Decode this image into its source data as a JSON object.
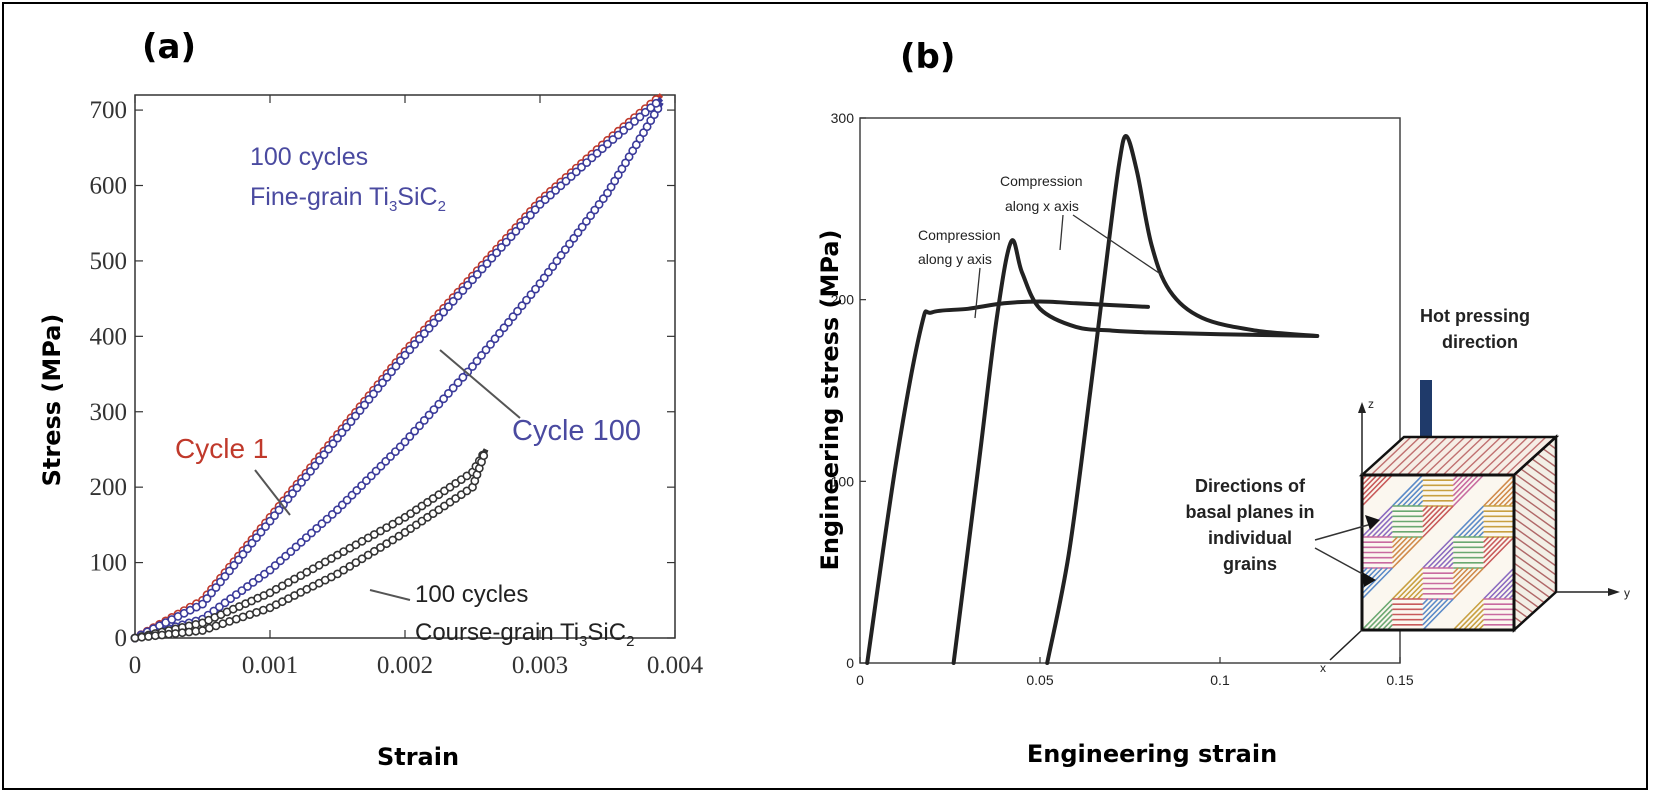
{
  "chart_data": [
    {
      "panel_label": "(a)",
      "type": "line",
      "xlabel": "Strain",
      "ylabel": "Stress (MPa)",
      "xlim": [
        0,
        0.004
      ],
      "ylim": [
        0,
        720
      ],
      "x_ticks": [
        "0",
        "0.001",
        "0.002",
        "0.003",
        "0.004"
      ],
      "y_ticks": [
        "0",
        "100",
        "200",
        "300",
        "400",
        "500",
        "600",
        "700"
      ],
      "annotations": {
        "fine_grain_line1": "100 cycles",
        "fine_grain_line2_prefix": "Fine-grain Ti",
        "fine_grain_sub1": "3",
        "fine_grain_mid": "SiC",
        "fine_grain_sub2": "2",
        "cycle1": "Cycle 1",
        "cycle100": "Cycle 100",
        "coarse_line1": "100 cycles",
        "coarse_line2_prefix": "Course-grain Ti",
        "coarse_sub1": "3",
        "coarse_mid": "SiC",
        "coarse_sub2": "2"
      },
      "series": [
        {
          "name": "Cycle 1",
          "color": "#c0392b",
          "x": [
            0,
            0.0005,
            0.001,
            0.0015,
            0.002,
            0.0025,
            0.003,
            0.0035,
            0.0039
          ],
          "y": [
            0,
            50,
            160,
            270,
            380,
            480,
            580,
            660,
            720
          ]
        },
        {
          "name": "Cycle 100",
          "color": "#3a3a9a",
          "x": [
            0,
            0.0005,
            0.001,
            0.0015,
            0.002,
            0.0025,
            0.003,
            0.0035,
            0.0039
          ],
          "y": [
            0,
            25,
            90,
            170,
            260,
            360,
            470,
            590,
            710
          ]
        },
        {
          "name": "Cycle 1 upper",
          "color": "#3a3a9a",
          "x": [
            0,
            0.0005,
            0.001,
            0.0015,
            0.002,
            0.0025,
            0.003,
            0.0035,
            0.0039
          ],
          "y": [
            0,
            45,
            155,
            265,
            375,
            475,
            575,
            655,
            715
          ]
        },
        {
          "name": "Course-grain",
          "color": "#333333",
          "x": [
            0,
            0.0005,
            0.001,
            0.0015,
            0.002,
            0.0025,
            0.0026
          ],
          "y": [
            0,
            20,
            60,
            110,
            160,
            220,
            250
          ]
        },
        {
          "name": "Course-grain lower",
          "color": "#333333",
          "x": [
            0,
            0.0005,
            0.001,
            0.0015,
            0.002,
            0.0025,
            0.0026
          ],
          "y": [
            0,
            10,
            40,
            85,
            140,
            200,
            250
          ]
        }
      ]
    },
    {
      "panel_label": "(b)",
      "type": "line",
      "xlabel": "Engineering strain",
      "ylabel": "Engineering stress (MPa)",
      "xlim": [
        0,
        0.15
      ],
      "ylim": [
        0,
        300
      ],
      "x_ticks": [
        "0",
        "0.05",
        "0.1",
        "0.15"
      ],
      "y_ticks": [
        "0",
        "100",
        "200",
        "300"
      ],
      "annotations": {
        "comp_x_1": "Compression",
        "comp_x_2": "along x axis",
        "comp_y_1": "Compression",
        "comp_y_2": "along y axis",
        "hot_1": "Hot pressing",
        "hot_2": "direction",
        "dir_1": "Directions of",
        "dir_2": "basal planes in",
        "dir_3": "individual",
        "dir_4": "grains",
        "axis_z": "z",
        "axis_y": "y",
        "axis_x": "x"
      },
      "series": [
        {
          "name": "along y axis",
          "color": "#222222",
          "x": [
            0.002,
            0.01,
            0.017,
            0.02,
            0.03,
            0.04,
            0.05,
            0.06,
            0.07,
            0.08
          ],
          "y": [
            0,
            110,
            185,
            193,
            195,
            198,
            199,
            198,
            197,
            196
          ]
        },
        {
          "name": "along x axis (1)",
          "color": "#222222",
          "x": [
            0.026,
            0.033,
            0.038,
            0.042,
            0.045,
            0.05,
            0.06,
            0.07,
            0.08,
            0.1,
            0.127
          ],
          "y": [
            0,
            110,
            190,
            232,
            215,
            195,
            185,
            183,
            182,
            181,
            180
          ]
        },
        {
          "name": "along x axis (2)",
          "color": "#222222",
          "x": [
            0.052,
            0.058,
            0.064,
            0.069,
            0.072,
            0.074,
            0.077,
            0.081,
            0.086,
            0.095,
            0.11,
            0.127
          ],
          "y": [
            0,
            60,
            150,
            230,
            275,
            290,
            270,
            230,
            205,
            190,
            183,
            180
          ]
        }
      ]
    }
  ]
}
